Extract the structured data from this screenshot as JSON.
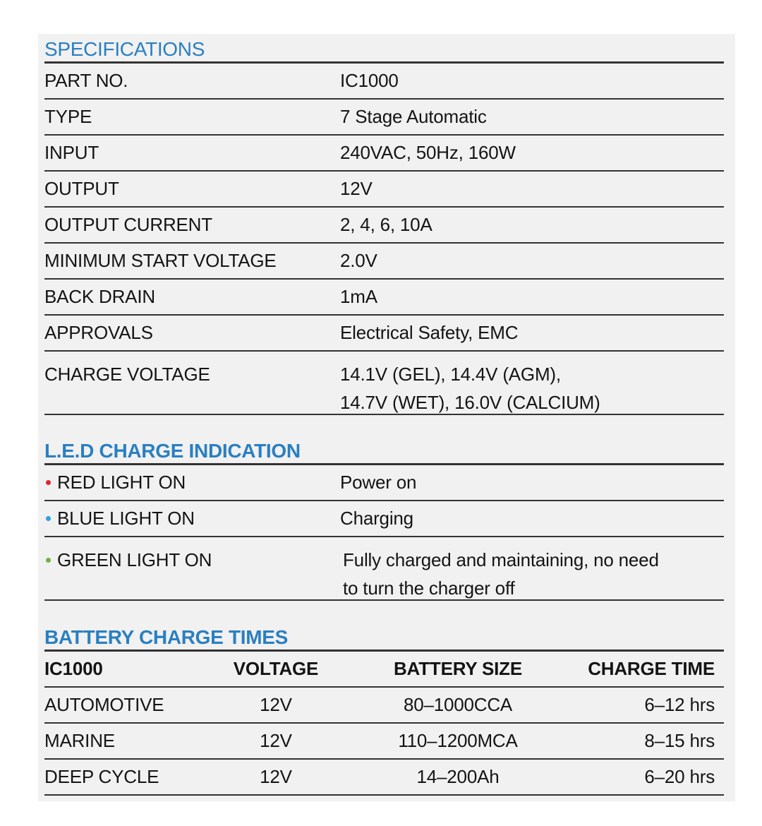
{
  "specifications": {
    "title": "SPECIFICATIONS",
    "rows": [
      {
        "label": "PART NO.",
        "value": "IC1000"
      },
      {
        "label": "TYPE",
        "value": "7 Stage Automatic"
      },
      {
        "label": "INPUT",
        "value": "240VAC, 50Hz, 160W"
      },
      {
        "label": "OUTPUT",
        "value": "12V"
      },
      {
        "label": "OUTPUT CURRENT",
        "value": "2, 4, 6, 10A"
      },
      {
        "label": "MINIMUM START VOLTAGE",
        "value": "2.0V"
      },
      {
        "label": "BACK DRAIN",
        "value": "1mA"
      },
      {
        "label": "APPROVALS",
        "value": "Electrical Safety, EMC"
      },
      {
        "label": "CHARGE VOLTAGE",
        "value": "14.1V (GEL), 14.4V (AGM),",
        "value2": "14.7V (WET), 16.0V (CALCIUM)"
      }
    ]
  },
  "led": {
    "title": "L.E.D CHARGE INDICATION",
    "rows": [
      {
        "label": "RED LIGHT ON",
        "value": "Power on",
        "color": "#e0262b"
      },
      {
        "label": "BLUE LIGHT ON",
        "value": "Charging",
        "color": "#2ba3dc"
      },
      {
        "label": "GREEN LIGHT ON",
        "value": "Fully charged and maintaining, no need",
        "value2": "to turn the charger off",
        "color": "#6db245"
      }
    ]
  },
  "charge_times": {
    "title": "BATTERY CHARGE TIMES",
    "headers": [
      "IC1000",
      "VOLTAGE",
      "BATTERY SIZE",
      "CHARGE TIME"
    ],
    "rows": [
      [
        "AUTOMOTIVE",
        "12V",
        "80–1000CCA",
        "6–12 hrs"
      ],
      [
        "MARINE",
        "12V",
        "110–1200MCA",
        "8–15 hrs"
      ],
      [
        "DEEP CYCLE",
        "12V",
        "14–200Ah",
        "6–20 hrs"
      ]
    ]
  }
}
